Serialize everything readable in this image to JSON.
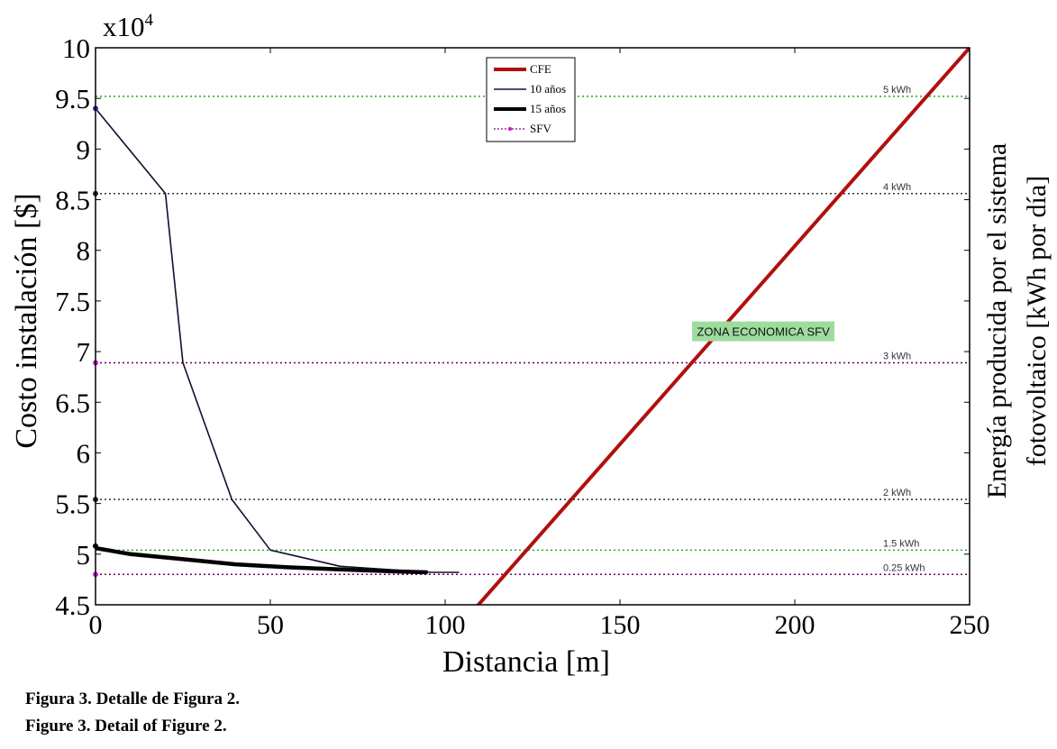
{
  "chart_data": {
    "type": "line",
    "multiplier_label": "x10",
    "multiplier_exponent": "4",
    "xlabel": "Distancia [m]",
    "ylabel": "Costo instalación [$]",
    "ylabel_right_line1": "Energía producida por el sistema",
    "ylabel_right_line2": "fotovoltaico [kWh por día]",
    "xlim": [
      0,
      250
    ],
    "ylim": [
      4.5,
      10
    ],
    "x_ticks": [
      0,
      50,
      100,
      150,
      200,
      250
    ],
    "x_tick_labels": [
      "0",
      "50",
      "100",
      "150",
      "200",
      "250"
    ],
    "y_ticks": [
      4.5,
      5,
      5.5,
      6,
      6.5,
      7,
      7.5,
      8,
      8.5,
      9,
      9.5,
      10
    ],
    "y_tick_labels": [
      "4.5",
      "5",
      "5.5",
      "6",
      "6.5",
      "7",
      "7.5",
      "8",
      "8.5",
      "9",
      "9.5",
      "10"
    ],
    "grid": false,
    "legend_position": "top-center",
    "series": [
      {
        "name": "CFE",
        "style": "thick-red",
        "color": "#b01010",
        "x": [
          108,
          250
        ],
        "y": [
          4.44,
          10.0
        ]
      },
      {
        "name": "10 años",
        "style": "thin",
        "color": "#101030",
        "x": [
          0,
          20,
          25,
          39,
          50,
          70,
          96,
          104
        ],
        "y": [
          9.4,
          8.56,
          6.89,
          5.54,
          5.04,
          4.88,
          4.82,
          4.82
        ]
      },
      {
        "name": "15 años",
        "style": "thick",
        "color": "#000000",
        "x": [
          0,
          10,
          25,
          40,
          55,
          70,
          85,
          95
        ],
        "y": [
          5.06,
          5.0,
          4.95,
          4.9,
          4.87,
          4.85,
          4.83,
          4.82
        ]
      },
      {
        "name": "SFV",
        "style": "dotted-legend",
        "color": "#800080"
      }
    ],
    "reference_lines": [
      {
        "label": "5 kWh",
        "y": 9.52,
        "color": "#22aa22"
      },
      {
        "label": "4 kWh",
        "y": 8.56,
        "color": "#333333"
      },
      {
        "label": "3 kWh",
        "y": 6.89,
        "color": "#660066"
      },
      {
        "label": "2 kWh",
        "y": 5.54,
        "color": "#333333"
      },
      {
        "label": "1.5 kWh",
        "y": 5.04,
        "color": "#22aa22"
      },
      {
        "label": "0.25 kWh",
        "y": 4.8,
        "color": "#660066"
      }
    ],
    "left_markers": [
      {
        "y": 9.4,
        "color": "#2233aa"
      },
      {
        "y": 8.56,
        "color": "#222244"
      },
      {
        "y": 6.89,
        "color": "#cc22cc"
      },
      {
        "y": 5.54,
        "color": "#222244"
      },
      {
        "y": 5.08,
        "color": "#000000"
      },
      {
        "y": 4.8,
        "color": "#cc22cc"
      }
    ],
    "annotation": {
      "text": "ZONA ECONOMICA SFV",
      "x": 191,
      "y": 7.2,
      "background": "#9edc9e"
    }
  },
  "caption": {
    "line1": "Figura 3. Detalle de Figura 2.",
    "line2": "Figure 3. Detail of Figure 2."
  }
}
